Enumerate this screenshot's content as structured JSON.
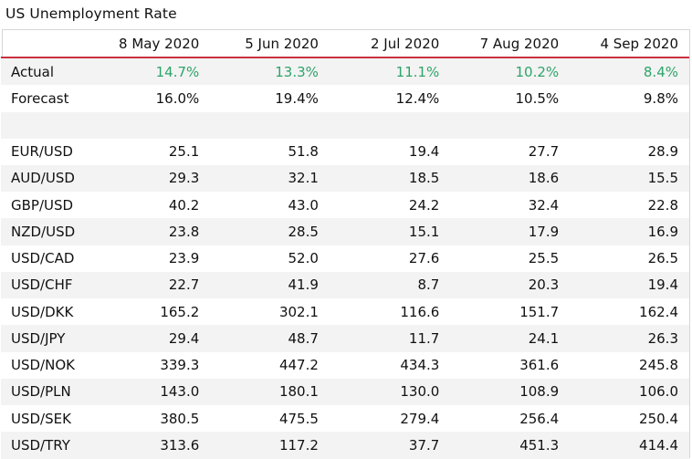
{
  "title": "US Unemployment Rate",
  "columns": [
    "8 May 2020",
    "5 Jun 2020",
    "2 Jul 2020",
    "7 Aug 2020",
    "4 Sep 2020"
  ],
  "colors": {
    "header_rule": "#c9323f",
    "actual_text": "#2ea46a",
    "stripe": "#f3f3f3"
  },
  "rows": [
    {
      "label": "Actual",
      "values": [
        "14.7%",
        "13.3%",
        "11.1%",
        "10.2%",
        "8.4%"
      ]
    },
    {
      "label": "Forecast",
      "values": [
        "16.0%",
        "19.4%",
        "12.4%",
        "10.5%",
        "9.8%"
      ]
    },
    {
      "label": "",
      "values": [
        "",
        "",
        "",
        "",
        ""
      ]
    },
    {
      "label": "EUR/USD",
      "values": [
        "25.1",
        "51.8",
        "19.4",
        "27.7",
        "28.9"
      ]
    },
    {
      "label": "AUD/USD",
      "values": [
        "29.3",
        "32.1",
        "18.5",
        "18.6",
        "15.5"
      ]
    },
    {
      "label": "GBP/USD",
      "values": [
        "40.2",
        "43.0",
        "24.2",
        "32.4",
        "22.8"
      ]
    },
    {
      "label": "NZD/USD",
      "values": [
        "23.8",
        "28.5",
        "15.1",
        "17.9",
        "16.9"
      ]
    },
    {
      "label": "USD/CAD",
      "values": [
        "23.9",
        "52.0",
        "27.6",
        "25.5",
        "26.5"
      ]
    },
    {
      "label": "USD/CHF",
      "values": [
        "22.7",
        "41.9",
        "8.7",
        "20.3",
        "19.4"
      ]
    },
    {
      "label": "USD/DKK",
      "values": [
        "165.2",
        "302.1",
        "116.6",
        "151.7",
        "162.4"
      ]
    },
    {
      "label": "USD/JPY",
      "values": [
        "29.4",
        "48.7",
        "11.7",
        "24.1",
        "26.3"
      ]
    },
    {
      "label": "USD/NOK",
      "values": [
        "339.3",
        "447.2",
        "434.3",
        "361.6",
        "245.8"
      ]
    },
    {
      "label": "USD/PLN",
      "values": [
        "143.0",
        "180.1",
        "130.0",
        "108.9",
        "106.0"
      ]
    },
    {
      "label": "USD/SEK",
      "values": [
        "380.5",
        "475.5",
        "279.4",
        "256.4",
        "250.4"
      ]
    },
    {
      "label": "USD/TRY",
      "values": [
        "313.6",
        "117.2",
        "37.7",
        "451.3",
        "414.4"
      ]
    }
  ]
}
